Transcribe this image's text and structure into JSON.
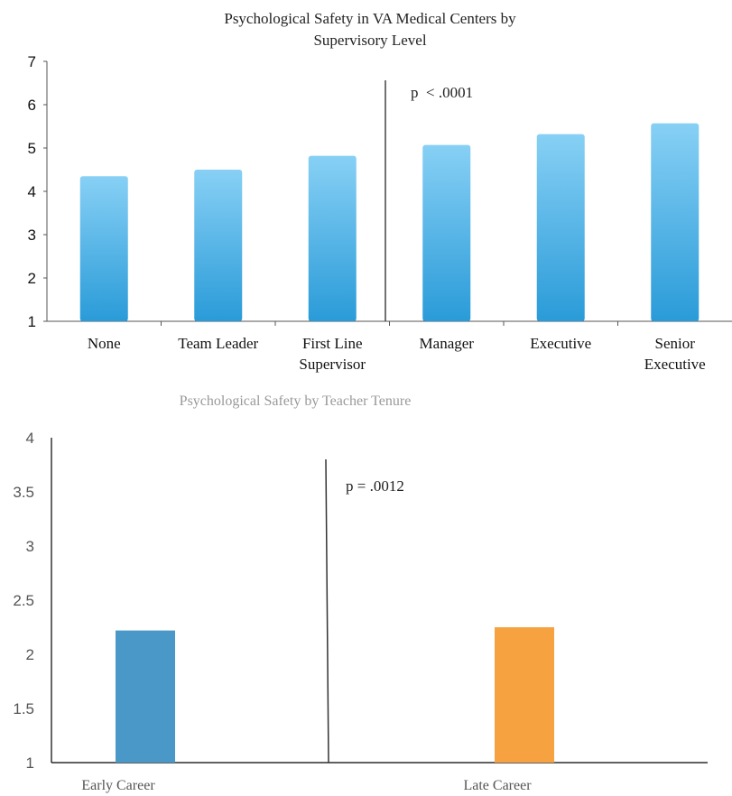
{
  "chart_data": [
    {
      "type": "bar",
      "title_lines": [
        "Psychological Safety in VA Medical Centers by",
        "Supervisory Level"
      ],
      "categories": [
        [
          "None"
        ],
        [
          "Team Leader"
        ],
        [
          "First Line",
          "Supervisor"
        ],
        [
          "Manager"
        ],
        [
          "Executive"
        ],
        [
          "Senior",
          "Executive"
        ]
      ],
      "values": [
        4.35,
        4.5,
        4.82,
        5.07,
        5.32,
        5.57
      ],
      "ylim": [
        1,
        7
      ],
      "yticks": [
        "1",
        "2",
        "3",
        "4",
        "5",
        "6",
        "7"
      ],
      "annotation": "p  < .0001",
      "bar_color_top": "#87d0f5",
      "bar_color_bottom": "#2a9bd8",
      "grid": false
    },
    {
      "type": "bar",
      "title": "Psychological Safety by Teacher Tenure",
      "categories": [
        "Early Career",
        "Late Career"
      ],
      "values": [
        2.22,
        2.25
      ],
      "ylim": [
        1,
        4
      ],
      "yticks": [
        "1",
        "1.5",
        "2",
        "2.5",
        "3",
        "3.5",
        "4"
      ],
      "annotation": "p = .0012",
      "colors": [
        "#4a98c8",
        "#f6a240"
      ],
      "grid": false
    }
  ]
}
